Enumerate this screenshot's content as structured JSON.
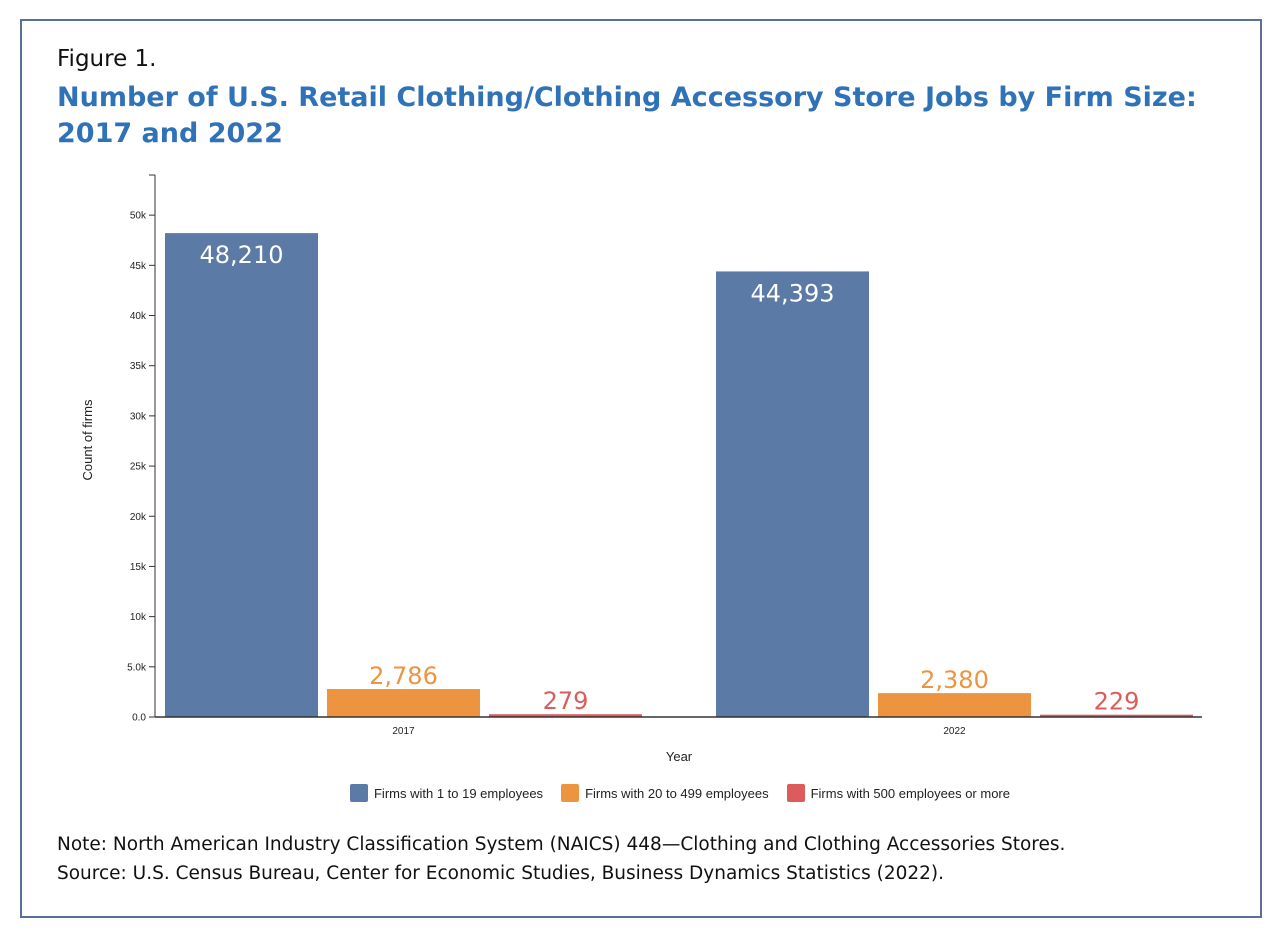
{
  "figure_label": "Figure 1.",
  "title": "Number of U.S. Retail Clothing/Clothing Accessory Store Jobs by Firm Size: 2017 and 2022",
  "note": "Note: North American Industry Classification System (NAICS) 448—Clothing and Clothing Accessories Stores.",
  "source": "Source: U.S. Census Bureau, Center for Economic Studies, Business Dynamics Statistics (2022).",
  "colors": {
    "frame": "#5a6f9a",
    "title": "#2f72b8"
  },
  "chart_data": {
    "type": "bar",
    "categories": [
      "2017",
      "2022"
    ],
    "series": [
      {
        "name": "Firms with 1 to 19 employees",
        "values": [
          48210,
          44393
        ],
        "labels": [
          "48,210",
          "44,393"
        ],
        "color": "#5b7aa6",
        "label_color": "#ffffff",
        "label_position": "inside"
      },
      {
        "name": "Firms with 20 to 499 employees",
        "values": [
          2786,
          2380
        ],
        "labels": [
          "2,786",
          "2,380"
        ],
        "color": "#ec9440",
        "label_color": "#ec9440",
        "label_position": "above"
      },
      {
        "name": "Firms with 500 employees or more",
        "values": [
          279,
          229
        ],
        "labels": [
          "279",
          "229"
        ],
        "color": "#dc5c5c",
        "label_color": "#dc5c5c",
        "label_position": "above"
      }
    ],
    "xlabel": "Year",
    "ylabel": "Count of firms",
    "ylim": [
      0,
      54000
    ],
    "yticks": [
      0,
      5000,
      10000,
      15000,
      20000,
      25000,
      30000,
      35000,
      40000,
      45000,
      50000
    ],
    "ytick_labels": [
      "0.0",
      "5.0k",
      "10k",
      "15k",
      "20k",
      "25k",
      "30k",
      "35k",
      "40k",
      "45k",
      "50k"
    ],
    "grid": false,
    "legend_position": "bottom"
  }
}
